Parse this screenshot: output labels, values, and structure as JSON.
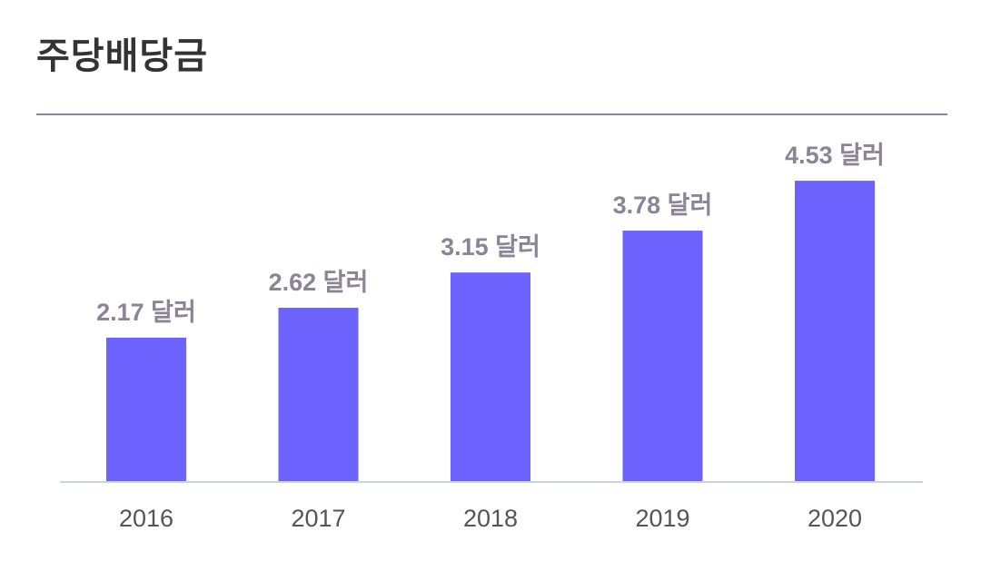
{
  "header": {
    "title": "주당배당금"
  },
  "colors": {
    "bar": "#6c63ff",
    "value_label": "#8a8497",
    "tick_label": "#555555",
    "axis": "#c7d3e6",
    "divider": "#8d8499"
  },
  "chart_data": {
    "type": "bar",
    "title": "주당배당금",
    "xlabel": "",
    "ylabel": "",
    "categories": [
      "2016",
      "2017",
      "2018",
      "2019",
      "2020"
    ],
    "values": [
      2.17,
      2.62,
      3.15,
      3.78,
      4.53
    ],
    "value_labels": [
      "2.17 달러",
      "2.62 달러",
      "3.15 달러",
      "3.78 달러",
      "4.53 달러"
    ],
    "ylim": [
      0,
      5.2
    ],
    "grid": false,
    "legend": "none"
  }
}
